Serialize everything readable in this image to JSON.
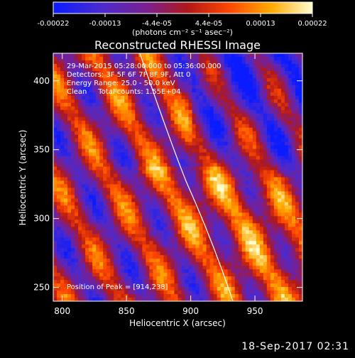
{
  "colorbar": {
    "ticks": [
      "-0.00022",
      "-0.00013",
      "-4.4e-05",
      "4.4e-05",
      "0.00013",
      "0.00022"
    ],
    "unit_label": "(photons cm⁻² s⁻¹ asec⁻²)",
    "colors": [
      "#0a1cff",
      "#5a2bb0",
      "#8a1f6a",
      "#c01010",
      "#ff5a00",
      "#ffb000",
      "#ffffc0"
    ]
  },
  "chart_data": {
    "type": "heatmap",
    "title": "Reconstructed RHESSI Image",
    "xlabel": "Heliocentric X (arcsec)",
    "ylabel": "Heliocentric Y (arcsec)",
    "xlim": [
      793,
      987
    ],
    "ylim": [
      240,
      420
    ],
    "xticks": [
      800,
      850,
      900,
      950
    ],
    "yticks": [
      250,
      300,
      350,
      400
    ],
    "annotations": [
      "29-Mar-2015 05:28:00.000 to 05:36:00.000",
      "Detectors: 3F 5F 6F 7F 8F 9F, Att 0",
      "Energy Range: 25.0 - 50.0 keV",
      "Clean     Total counts: 1.55E+04"
    ],
    "peak_label": "Position of Peak = [914,238]",
    "peak": [
      914,
      238
    ]
  },
  "footer": {
    "date": "18-Sep-2017 02:31"
  }
}
